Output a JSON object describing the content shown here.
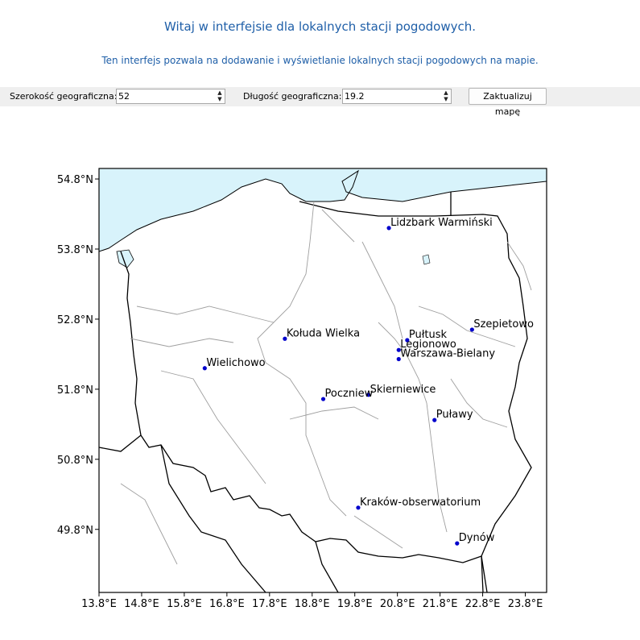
{
  "header": {
    "title": "Witaj w interfejsie dla lokalnych stacji pogodowych.",
    "subtitle": "Ten interfejs pozwala na dodawanie i wyświetlanie lokalnych stacji pogodowych na mapie."
  },
  "controls": {
    "lat_label": "Szerokość geograficzna:",
    "lat_value": "52",
    "lon_label": "Długość geograficzna:",
    "lon_value": "19.2",
    "update_button": "Zaktualizuj mapę"
  },
  "map": {
    "lon_range": [
      13.8,
      24.3
    ],
    "lat_range": [
      48.9,
      54.95
    ],
    "x_ticks": [
      "13.8°E",
      "14.8°E",
      "15.8°E",
      "16.8°E",
      "17.8°E",
      "18.8°E",
      "19.8°E",
      "20.8°E",
      "21.8°E",
      "22.8°E",
      "23.8°E"
    ],
    "x_tick_values": [
      13.8,
      14.8,
      15.8,
      16.8,
      17.8,
      18.8,
      19.8,
      20.8,
      21.8,
      22.8,
      23.8
    ],
    "y_ticks": [
      "54.8°N",
      "53.8°N",
      "52.8°N",
      "51.8°N",
      "50.8°N",
      "49.8°N"
    ],
    "y_tick_values": [
      54.8,
      53.8,
      52.8,
      51.8,
      50.8,
      49.8
    ],
    "sea_color": "#d8f3fb",
    "marker_color": "#0000cc",
    "stations": [
      {
        "name": "Lidzbark Warmiński",
        "lon": 20.6,
        "lat": 54.1
      },
      {
        "name": "Kołuda Wielka",
        "lon": 18.16,
        "lat": 52.52
      },
      {
        "name": "Szepietowo",
        "lon": 22.55,
        "lat": 52.65
      },
      {
        "name": "Pułtusk",
        "lon": 21.03,
        "lat": 52.5
      },
      {
        "name": "Legionowo",
        "lon": 20.83,
        "lat": 52.36
      },
      {
        "name": "Warszawa-Bielany",
        "lon": 20.83,
        "lat": 52.23
      },
      {
        "name": "Wielichowo",
        "lon": 16.28,
        "lat": 52.1
      },
      {
        "name": "Skierniewice",
        "lon": 20.12,
        "lat": 51.72
      },
      {
        "name": "Poczniew",
        "lon": 19.06,
        "lat": 51.66
      },
      {
        "name": "Puławy",
        "lon": 21.67,
        "lat": 51.36
      },
      {
        "name": "Kraków-obserwatorium",
        "lon": 19.88,
        "lat": 50.11
      },
      {
        "name": "Dynów",
        "lon": 22.2,
        "lat": 49.6
      }
    ]
  }
}
